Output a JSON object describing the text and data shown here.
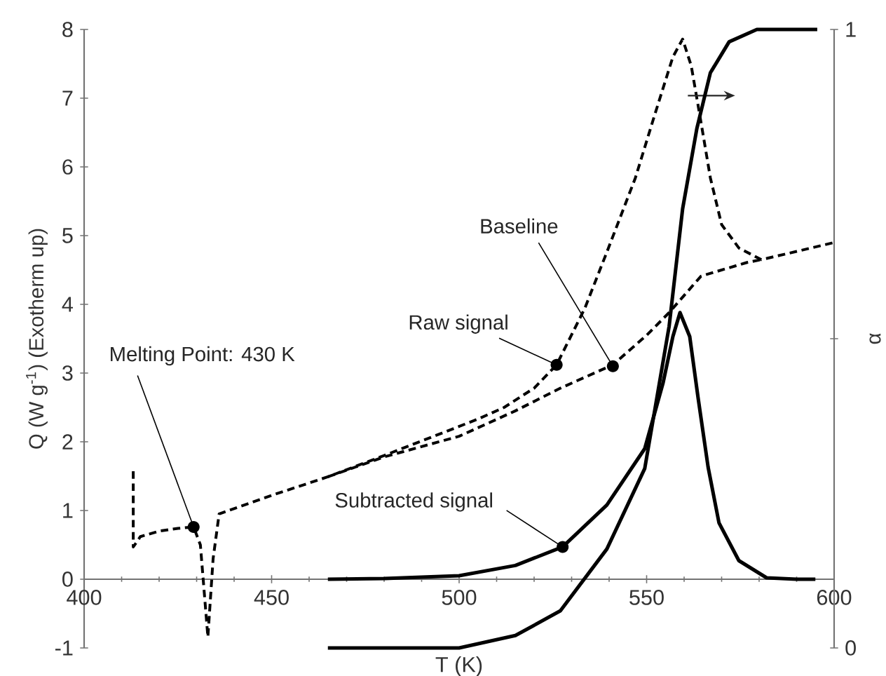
{
  "chart_data": {
    "type": "line",
    "xlabel": "T (K)",
    "ylabel": "Q (W g$^{-1}$)  (Exotherm up)",
    "y2label": "α",
    "xlim": [
      400,
      600
    ],
    "xticks": [
      400,
      450,
      500,
      550,
      600
    ],
    "ylim": [
      -1,
      8
    ],
    "yticks": [
      -1,
      0,
      1,
      2,
      3,
      4,
      5,
      6,
      7,
      8
    ],
    "y2lim": [
      0,
      1
    ],
    "y2ticks": [
      0,
      {
        "value": 0.5,
        "label": null
      },
      1
    ],
    "series": [
      {
        "color": "#000000",
        "line_style": "dashed",
        "x": [
          413.1,
          413.1,
          415,
          420,
          425,
          429.2,
          431,
          433,
          434.4,
          436,
          450,
          465,
          480,
          497,
          505,
          512,
          520,
          526,
          533.5,
          539.4,
          547,
          552,
          557,
          559.6,
          561.9,
          564.5,
          567,
          570,
          574.6,
          580.6,
          590,
          600
        ],
        "values": [
          1.57,
          0.47,
          0.62,
          0.7,
          0.74,
          0.76,
          0.5,
          -0.84,
          0.3,
          0.95,
          1.22,
          1.49,
          1.8,
          2.16,
          2.33,
          2.5,
          2.78,
          3.12,
          3.94,
          4.76,
          5.84,
          6.73,
          7.6,
          7.86,
          7.47,
          6.65,
          5.84,
          5.16,
          4.82,
          4.65,
          4.77,
          4.9
        ]
      },
      {
        "color": "#000000",
        "line_style": "dashed",
        "x": [
          465,
          480,
          500,
          515,
          527,
          541,
          550,
          556,
          564.5,
          576.8,
          580.6
        ],
        "values": [
          1.49,
          1.78,
          2.08,
          2.45,
          2.78,
          3.12,
          3.55,
          3.88,
          4.41,
          4.61,
          4.65
        ]
      },
      {
        "color": "#000000",
        "line_style": "solid",
        "x": [
          465,
          480,
          500,
          515,
          527.6,
          539.4,
          549.5,
          554.4,
          557,
          558.9,
          561.5,
          563.7,
          566.4,
          569.3,
          574.6,
          582,
          590,
          595
        ],
        "values": [
          0,
          0.01,
          0.05,
          0.2,
          0.47,
          1.08,
          1.9,
          2.86,
          3.53,
          3.88,
          3.53,
          2.65,
          1.63,
          0.82,
          0.27,
          0.02,
          0,
          0
        ]
      },
      {
        "color": "#000000",
        "line_style": "solid",
        "axis": "y2",
        "x": [
          465,
          500,
          515,
          527,
          539.4,
          549.5,
          556,
          559.6,
          563.4,
          567,
          572,
          579.4,
          595.5
        ],
        "values": [
          0,
          0,
          0.02,
          0.06,
          0.16,
          0.29,
          0.52,
          0.71,
          0.84,
          0.93,
          0.98,
          1,
          1
        ]
      }
    ],
    "annotations": [
      {
        "text": "Melting Point: 430 K",
        "x": 429.2,
        "y": 0.76
      },
      {
        "text": "Raw signal",
        "x": 526,
        "y": 3.12
      },
      {
        "text": "Baseline",
        "x": 541,
        "y": 3.1
      },
      {
        "text": "Subtracted signal",
        "x": 527.6,
        "y": 0.47
      }
    ]
  }
}
